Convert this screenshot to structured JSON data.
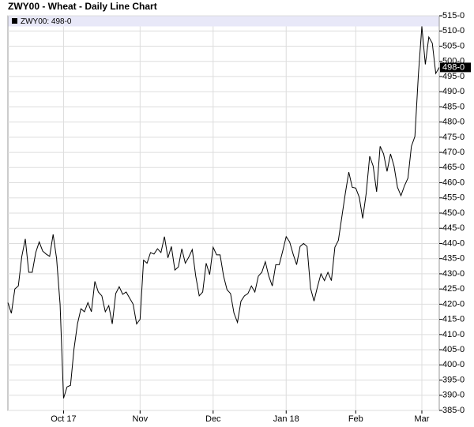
{
  "chart_data": {
    "type": "line",
    "title": "ZWY00 - Wheat - Daily Line Chart",
    "legend_label": "ZWY00: 498-0",
    "last_label": "498-0",
    "categories": [
      null,
      null,
      null,
      null,
      null,
      null,
      null,
      null,
      null,
      null,
      null,
      null,
      null,
      null,
      null,
      null,
      "Oct 17",
      null,
      null,
      null,
      null,
      null,
      null,
      null,
      null,
      null,
      null,
      null,
      null,
      null,
      null,
      null,
      null,
      null,
      null,
      null,
      null,
      null,
      "Nov",
      null,
      null,
      null,
      null,
      null,
      null,
      null,
      null,
      null,
      null,
      null,
      null,
      null,
      null,
      null,
      null,
      null,
      null,
      null,
      null,
      "Dec",
      null,
      null,
      null,
      null,
      null,
      null,
      null,
      null,
      null,
      null,
      null,
      null,
      null,
      null,
      null,
      null,
      null,
      null,
      null,
      null,
      "Jan 18",
      null,
      null,
      null,
      null,
      null,
      null,
      null,
      null,
      null,
      null,
      null,
      null,
      null,
      null,
      null,
      null,
      null,
      null,
      null,
      "Feb",
      null,
      null,
      null,
      null,
      null,
      null,
      null,
      null,
      null,
      null,
      null,
      null,
      null,
      null,
      null,
      null,
      null,
      null,
      "Mar",
      null,
      null,
      null,
      null,
      null
    ],
    "series": [
      {
        "name": "ZWY00",
        "color": "#000000",
        "values": [
          420.5,
          417,
          425,
          426,
          435.75,
          441.5,
          430.5,
          430.5,
          437,
          440.5,
          437.5,
          436.5,
          435.75,
          443,
          435,
          420,
          389,
          392.75,
          393.25,
          405.25,
          413.5,
          418.5,
          417.5,
          420.5,
          417.5,
          427.5,
          424,
          422.75,
          417.5,
          419.5,
          413.5,
          423.5,
          425.75,
          423.25,
          424,
          422,
          420,
          413.5,
          415,
          434.5,
          433.5,
          437,
          436.5,
          438.25,
          437,
          442.25,
          435.25,
          439,
          431.25,
          432.25,
          438.25,
          433.5,
          435.5,
          438,
          429.25,
          422.75,
          424,
          433.5,
          429.75,
          438.75,
          436.25,
          436.25,
          429.25,
          424.75,
          423.5,
          417,
          414,
          421,
          422.75,
          423.5,
          426,
          424,
          429.25,
          430.5,
          434,
          429.25,
          426,
          433,
          433,
          437.5,
          442.25,
          440.5,
          436.5,
          433,
          439,
          440,
          439,
          425.25,
          421,
          425.75,
          430,
          427.75,
          430.5,
          427.75,
          438.75,
          441,
          448.75,
          456.5,
          463.5,
          458.5,
          458.25,
          455.25,
          448.25,
          456.5,
          468.75,
          465.5,
          457,
          472,
          469.5,
          463.75,
          469.5,
          465.5,
          458.5,
          455.75,
          459,
          461.5,
          472,
          475.25,
          495.5,
          511.5,
          499,
          508,
          506,
          496,
          498
        ]
      }
    ],
    "ylim": [
      385,
      515
    ],
    "yticks": [
      {
        "value": 385,
        "label": "385-0"
      },
      {
        "value": 390,
        "label": "390-0"
      },
      {
        "value": 395,
        "label": "395-0"
      },
      {
        "value": 400,
        "label": "400-0"
      },
      {
        "value": 405,
        "label": "405-0"
      },
      {
        "value": 410,
        "label": "410-0"
      },
      {
        "value": 415,
        "label": "415-0"
      },
      {
        "value": 420,
        "label": "420-0"
      },
      {
        "value": 425,
        "label": "425-0"
      },
      {
        "value": 430,
        "label": "430-0"
      },
      {
        "value": 435,
        "label": "435-0"
      },
      {
        "value": 440,
        "label": "440-0"
      },
      {
        "value": 445,
        "label": "445-0"
      },
      {
        "value": 450,
        "label": "450-0"
      },
      {
        "value": 455,
        "label": "455-0"
      },
      {
        "value": 460,
        "label": "460-0"
      },
      {
        "value": 465,
        "label": "465-0"
      },
      {
        "value": 470,
        "label": "470-0"
      },
      {
        "value": 475,
        "label": "475-0"
      },
      {
        "value": 480,
        "label": "480-0"
      },
      {
        "value": 485,
        "label": "485-0"
      },
      {
        "value": 490,
        "label": "490-0"
      },
      {
        "value": 495,
        "label": "495-0"
      },
      {
        "value": 500,
        "label": "500-0"
      },
      {
        "value": 505,
        "label": "505-0"
      },
      {
        "value": 510,
        "label": "510-0"
      },
      {
        "value": 515,
        "label": "515-0"
      }
    ],
    "grid": true
  }
}
